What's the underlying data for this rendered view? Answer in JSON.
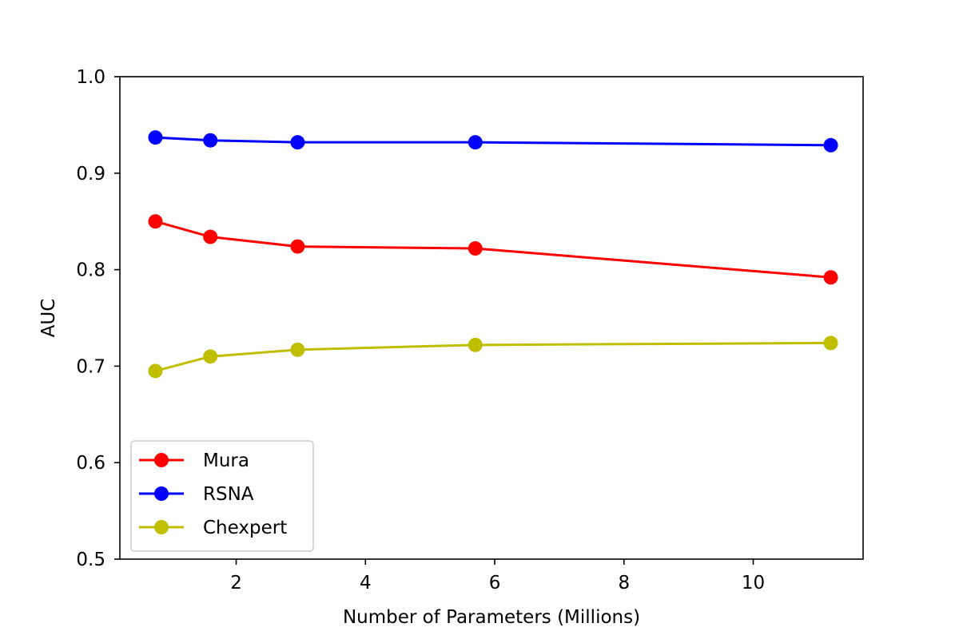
{
  "chart_data": {
    "type": "line",
    "xlabel": "Number of Parameters (Millions)",
    "ylabel": "AUC",
    "xlim": [
      0.2,
      11.7
    ],
    "ylim": [
      0.5,
      1.0
    ],
    "xticks": [
      2,
      4,
      6,
      8,
      10
    ],
    "xtick_labels": [
      "2",
      "4",
      "6",
      "8",
      "10"
    ],
    "yticks": [
      0.5,
      0.6,
      0.7,
      0.8,
      0.9,
      1.0
    ],
    "ytick_labels": [
      "0.5",
      "0.6",
      "0.7",
      "0.8",
      "0.9",
      "1.0"
    ],
    "grid": false,
    "legend_position": "lower-left",
    "x": [
      0.75,
      1.6,
      2.95,
      5.7,
      11.2
    ],
    "series": [
      {
        "name": "Mura",
        "color": "#ff0000",
        "values": [
          0.85,
          0.834,
          0.824,
          0.822,
          0.792
        ]
      },
      {
        "name": "RSNA",
        "color": "#0000ff",
        "values": [
          0.937,
          0.934,
          0.932,
          0.932,
          0.929
        ]
      },
      {
        "name": "Chexpert",
        "color": "#bfbf00",
        "values": [
          0.695,
          0.71,
          0.717,
          0.722,
          0.724
        ]
      }
    ]
  }
}
